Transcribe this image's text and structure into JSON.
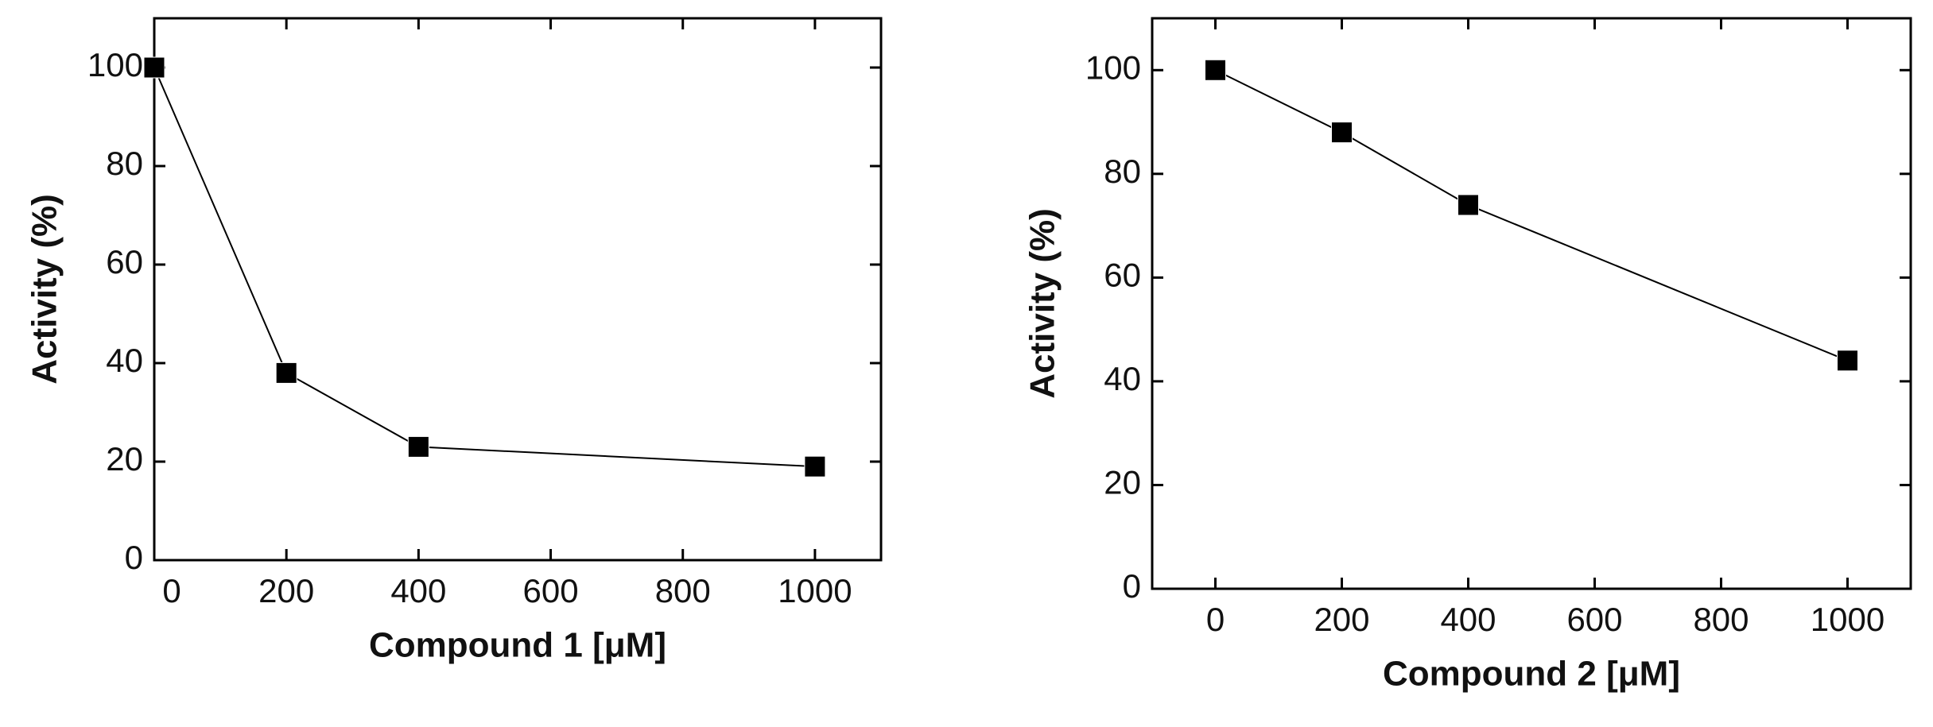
{
  "chart_data": [
    {
      "type": "line",
      "xlabel": "Compound 1 [μM]",
      "ylabel": "Activity (%)",
      "x": [
        0,
        200,
        400,
        1000
      ],
      "series": [
        {
          "color": "#000000",
          "values": [
            100,
            38,
            23,
            19
          ]
        }
      ],
      "xlim": [
        0,
        1100
      ],
      "ylim": [
        0,
        110
      ],
      "xticks": [
        0,
        200,
        400,
        600,
        800,
        1000
      ],
      "yticks": [
        0,
        20,
        40,
        60,
        80,
        100
      ]
    },
    {
      "type": "line",
      "xlabel": "Compound 2 [μM]",
      "ylabel": "Activity (%)",
      "x": [
        0,
        200,
        400,
        1000
      ],
      "series": [
        {
          "color": "#000000",
          "values": [
            100,
            88,
            74,
            44
          ]
        }
      ],
      "xlim": [
        -100,
        1100
      ],
      "ylim": [
        0,
        110
      ],
      "xticks": [
        0,
        200,
        400,
        600,
        800,
        1000
      ],
      "yticks": [
        0,
        20,
        40,
        60,
        80,
        100
      ]
    }
  ]
}
